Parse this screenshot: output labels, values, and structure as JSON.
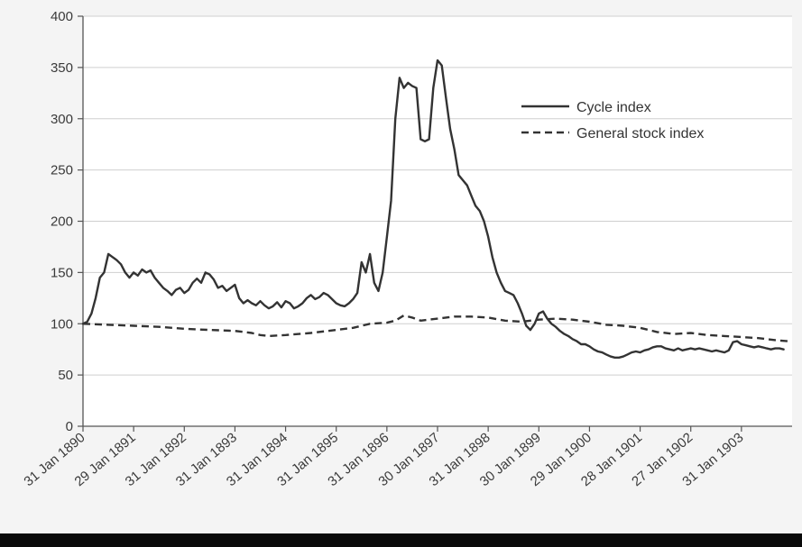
{
  "chart_data": {
    "type": "line",
    "title": "",
    "xlabel": "",
    "ylabel": "",
    "ylim": [
      0,
      400
    ],
    "yticks": [
      0,
      50,
      100,
      150,
      200,
      250,
      300,
      350,
      400
    ],
    "xlim": [
      0,
      168
    ],
    "xticks": [
      {
        "label": "31 Jan 1890",
        "month": 0
      },
      {
        "label": "29 Jan 1891",
        "month": 12
      },
      {
        "label": "31 Jan 1892",
        "month": 24
      },
      {
        "label": "31 Jan 1893",
        "month": 36
      },
      {
        "label": "31 Jan 1894",
        "month": 48
      },
      {
        "label": "31 Jan 1895",
        "month": 60
      },
      {
        "label": "31 Jan 1896",
        "month": 72
      },
      {
        "label": "30 Jan 1897",
        "month": 84
      },
      {
        "label": "31 Jan 1898",
        "month": 96
      },
      {
        "label": "30 Jan 1899",
        "month": 108
      },
      {
        "label": "29 Jan 1900",
        "month": 120
      },
      {
        "label": "28 Jan 1901",
        "month": 132
      },
      {
        "label": "27 Jan 1902",
        "month": 144
      },
      {
        "label": "31 Jan 1903",
        "month": 156
      }
    ],
    "grid": "horizontal",
    "legend_position": "top-right",
    "series": [
      {
        "name": "Cycle index",
        "style": "solid",
        "color": "#333333",
        "points": [
          [
            0,
            100
          ],
          [
            1,
            102
          ],
          [
            2,
            110
          ],
          [
            3,
            125
          ],
          [
            4,
            145
          ],
          [
            5,
            150
          ],
          [
            6,
            168
          ],
          [
            7,
            165
          ],
          [
            8,
            162
          ],
          [
            9,
            158
          ],
          [
            10,
            150
          ],
          [
            11,
            145
          ],
          [
            12,
            150
          ],
          [
            13,
            147
          ],
          [
            14,
            153
          ],
          [
            15,
            150
          ],
          [
            16,
            152
          ],
          [
            17,
            145
          ],
          [
            18,
            140
          ],
          [
            19,
            135
          ],
          [
            20,
            132
          ],
          [
            21,
            128
          ],
          [
            22,
            133
          ],
          [
            23,
            135
          ],
          [
            24,
            130
          ],
          [
            25,
            133
          ],
          [
            26,
            140
          ],
          [
            27,
            144
          ],
          [
            28,
            140
          ],
          [
            29,
            150
          ],
          [
            30,
            148
          ],
          [
            31,
            143
          ],
          [
            32,
            135
          ],
          [
            33,
            137
          ],
          [
            34,
            132
          ],
          [
            35,
            135
          ],
          [
            36,
            138
          ],
          [
            37,
            125
          ],
          [
            38,
            120
          ],
          [
            39,
            123
          ],
          [
            40,
            120
          ],
          [
            41,
            118
          ],
          [
            42,
            122
          ],
          [
            43,
            118
          ],
          [
            44,
            115
          ],
          [
            45,
            117
          ],
          [
            46,
            121
          ],
          [
            47,
            116
          ],
          [
            48,
            122
          ],
          [
            49,
            120
          ],
          [
            50,
            115
          ],
          [
            51,
            117
          ],
          [
            52,
            120
          ],
          [
            53,
            125
          ],
          [
            54,
            128
          ],
          [
            55,
            124
          ],
          [
            56,
            126
          ],
          [
            57,
            130
          ],
          [
            58,
            128
          ],
          [
            59,
            124
          ],
          [
            60,
            120
          ],
          [
            61,
            118
          ],
          [
            62,
            117
          ],
          [
            63,
            120
          ],
          [
            64,
            124
          ],
          [
            65,
            130
          ],
          [
            66,
            160
          ],
          [
            67,
            150
          ],
          [
            68,
            168
          ],
          [
            69,
            140
          ],
          [
            70,
            132
          ],
          [
            71,
            150
          ],
          [
            72,
            185
          ],
          [
            73,
            220
          ],
          [
            74,
            300
          ],
          [
            75,
            340
          ],
          [
            76,
            330
          ],
          [
            77,
            335
          ],
          [
            78,
            332
          ],
          [
            79,
            330
          ],
          [
            80,
            280
          ],
          [
            81,
            278
          ],
          [
            82,
            280
          ],
          [
            83,
            330
          ],
          [
            84,
            357
          ],
          [
            85,
            352
          ],
          [
            86,
            320
          ],
          [
            87,
            290
          ],
          [
            88,
            270
          ],
          [
            89,
            245
          ],
          [
            90,
            240
          ],
          [
            91,
            235
          ],
          [
            92,
            225
          ],
          [
            93,
            215
          ],
          [
            94,
            210
          ],
          [
            95,
            200
          ],
          [
            96,
            185
          ],
          [
            97,
            165
          ],
          [
            98,
            150
          ],
          [
            99,
            140
          ],
          [
            100,
            132
          ],
          [
            101,
            130
          ],
          [
            102,
            128
          ],
          [
            103,
            120
          ],
          [
            104,
            110
          ],
          [
            105,
            98
          ],
          [
            106,
            94
          ],
          [
            107,
            100
          ],
          [
            108,
            110
          ],
          [
            109,
            112
          ],
          [
            110,
            105
          ],
          [
            111,
            100
          ],
          [
            112,
            97
          ],
          [
            113,
            93
          ],
          [
            114,
            90
          ],
          [
            115,
            88
          ],
          [
            116,
            85
          ],
          [
            117,
            83
          ],
          [
            118,
            80
          ],
          [
            119,
            80
          ],
          [
            120,
            78
          ],
          [
            121,
            75
          ],
          [
            122,
            73
          ],
          [
            123,
            72
          ],
          [
            124,
            70
          ],
          [
            125,
            68
          ],
          [
            126,
            67
          ],
          [
            127,
            67
          ],
          [
            128,
            68
          ],
          [
            129,
            70
          ],
          [
            130,
            72
          ],
          [
            131,
            73
          ],
          [
            132,
            72
          ],
          [
            133,
            74
          ],
          [
            134,
            75
          ],
          [
            135,
            77
          ],
          [
            136,
            78
          ],
          [
            137,
            78
          ],
          [
            138,
            76
          ],
          [
            139,
            75
          ],
          [
            140,
            74
          ],
          [
            141,
            76
          ],
          [
            142,
            74
          ],
          [
            143,
            75
          ],
          [
            144,
            76
          ],
          [
            145,
            75
          ],
          [
            146,
            76
          ],
          [
            147,
            75
          ],
          [
            148,
            74
          ],
          [
            149,
            73
          ],
          [
            150,
            74
          ],
          [
            151,
            73
          ],
          [
            152,
            72
          ],
          [
            153,
            74
          ],
          [
            154,
            82
          ],
          [
            155,
            83
          ],
          [
            156,
            80
          ],
          [
            157,
            79
          ],
          [
            158,
            78
          ],
          [
            159,
            77
          ],
          [
            160,
            78
          ],
          [
            161,
            77
          ],
          [
            162,
            76
          ],
          [
            163,
            75
          ],
          [
            164,
            76
          ],
          [
            165,
            76
          ],
          [
            166,
            75
          ]
        ]
      },
      {
        "name": "General stock index",
        "style": "dashed",
        "color": "#333333",
        "points": [
          [
            0,
            100
          ],
          [
            6,
            99
          ],
          [
            12,
            98
          ],
          [
            18,
            97
          ],
          [
            24,
            95
          ],
          [
            30,
            94
          ],
          [
            36,
            93
          ],
          [
            40,
            91
          ],
          [
            42,
            89
          ],
          [
            44,
            88
          ],
          [
            48,
            89
          ],
          [
            54,
            91
          ],
          [
            60,
            94
          ],
          [
            64,
            96
          ],
          [
            68,
            100
          ],
          [
            72,
            101
          ],
          [
            74,
            103
          ],
          [
            76,
            108
          ],
          [
            78,
            106
          ],
          [
            80,
            103
          ],
          [
            84,
            105
          ],
          [
            88,
            107
          ],
          [
            92,
            107
          ],
          [
            96,
            106
          ],
          [
            100,
            103
          ],
          [
            104,
            102
          ],
          [
            108,
            104
          ],
          [
            112,
            105
          ],
          [
            116,
            104
          ],
          [
            120,
            102
          ],
          [
            124,
            99
          ],
          [
            128,
            98
          ],
          [
            132,
            96
          ],
          [
            136,
            92
          ],
          [
            140,
            90
          ],
          [
            144,
            91
          ],
          [
            148,
            89
          ],
          [
            152,
            88
          ],
          [
            156,
            87
          ],
          [
            160,
            86
          ],
          [
            164,
            84
          ],
          [
            167,
            83
          ]
        ]
      }
    ]
  }
}
